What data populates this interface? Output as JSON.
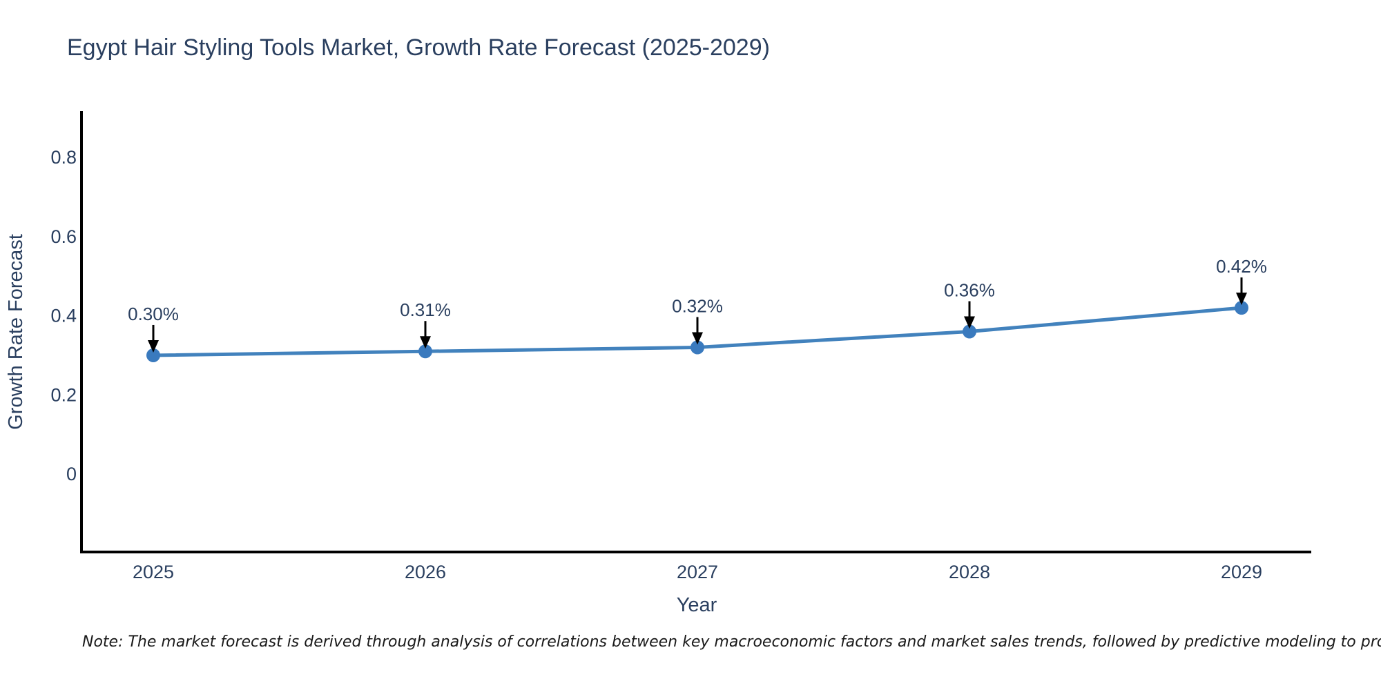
{
  "chart": {
    "title": "Egypt Hair Styling Tools Market, Growth Rate Forecast (2025-2029)",
    "note": "Note: The market forecast is derived through analysis of correlations between key macroeconomic factors and market sales trends, followed by predictive modeling to project future sales"
  },
  "chart_data": {
    "type": "line",
    "title": "Egypt Hair Styling Tools Market, Growth Rate Forecast (2025-2029)",
    "xlabel": "Year",
    "ylabel": "Growth Rate Forecast",
    "categories": [
      "2025",
      "2026",
      "2027",
      "2028",
      "2029"
    ],
    "values": [
      0.3,
      0.31,
      0.32,
      0.36,
      0.42
    ],
    "point_labels": [
      "0.30%",
      "0.31%",
      "0.32%",
      "0.36%",
      "0.42%"
    ],
    "yticks": [
      0,
      0.2,
      0.4,
      0.6,
      0.8
    ],
    "ylim": [
      -0.2,
      0.92
    ],
    "grid": false,
    "legend": false,
    "colors": {
      "line": "#4282bd",
      "marker": "#3a7abe",
      "text": "#2a3f5f",
      "axis": "#000000",
      "arrow": "#000000"
    },
    "note": "Note: The market forecast is derived through analysis of correlations between key macroeconomic factors and market sales trends, followed by predictive modeling to project future sales"
  }
}
